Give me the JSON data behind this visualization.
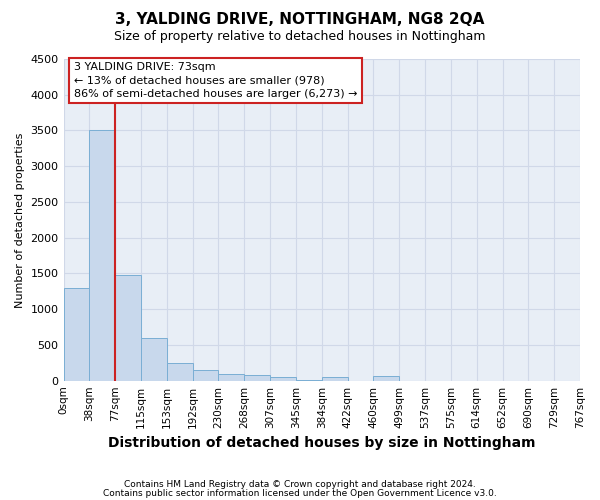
{
  "title": "3, YALDING DRIVE, NOTTINGHAM, NG8 2QA",
  "subtitle": "Size of property relative to detached houses in Nottingham",
  "xlabel": "Distribution of detached houses by size in Nottingham",
  "ylabel": "Number of detached properties",
  "footnote1": "Contains HM Land Registry data © Crown copyright and database right 2024.",
  "footnote2": "Contains public sector information licensed under the Open Government Licence v3.0.",
  "bin_labels": [
    "0sqm",
    "38sqm",
    "77sqm",
    "115sqm",
    "153sqm",
    "192sqm",
    "230sqm",
    "268sqm",
    "307sqm",
    "345sqm",
    "384sqm",
    "422sqm",
    "460sqm",
    "499sqm",
    "537sqm",
    "575sqm",
    "614sqm",
    "652sqm",
    "690sqm",
    "729sqm",
    "767sqm"
  ],
  "bar_values": [
    1300,
    3500,
    1475,
    600,
    250,
    150,
    100,
    75,
    55,
    10,
    50,
    0,
    60,
    0,
    0,
    0,
    0,
    0,
    0,
    0
  ],
  "bar_color": "#c8d8ec",
  "bar_edge_color": "#7aaed4",
  "grid_color": "#d0d8e8",
  "background_color": "#e8eef6",
  "ylim": [
    0,
    4500
  ],
  "yticks": [
    0,
    500,
    1000,
    1500,
    2000,
    2500,
    3000,
    3500,
    4000,
    4500
  ],
  "property_line_x": 2,
  "property_line_color": "#cc2222",
  "annotation_line1": "3 YALDING DRIVE: 73sqm",
  "annotation_line2": "← 13% of detached houses are smaller (978)",
  "annotation_line3": "86% of semi-detached houses are larger (6,273) →",
  "annotation_box_color": "#cc2222",
  "annotation_bg": "#ffffff",
  "title_fontsize": 11,
  "subtitle_fontsize": 9,
  "xlabel_fontsize": 10,
  "ylabel_fontsize": 8,
  "tick_fontsize": 8,
  "xtick_fontsize": 7.5,
  "footnote_fontsize": 6.5
}
